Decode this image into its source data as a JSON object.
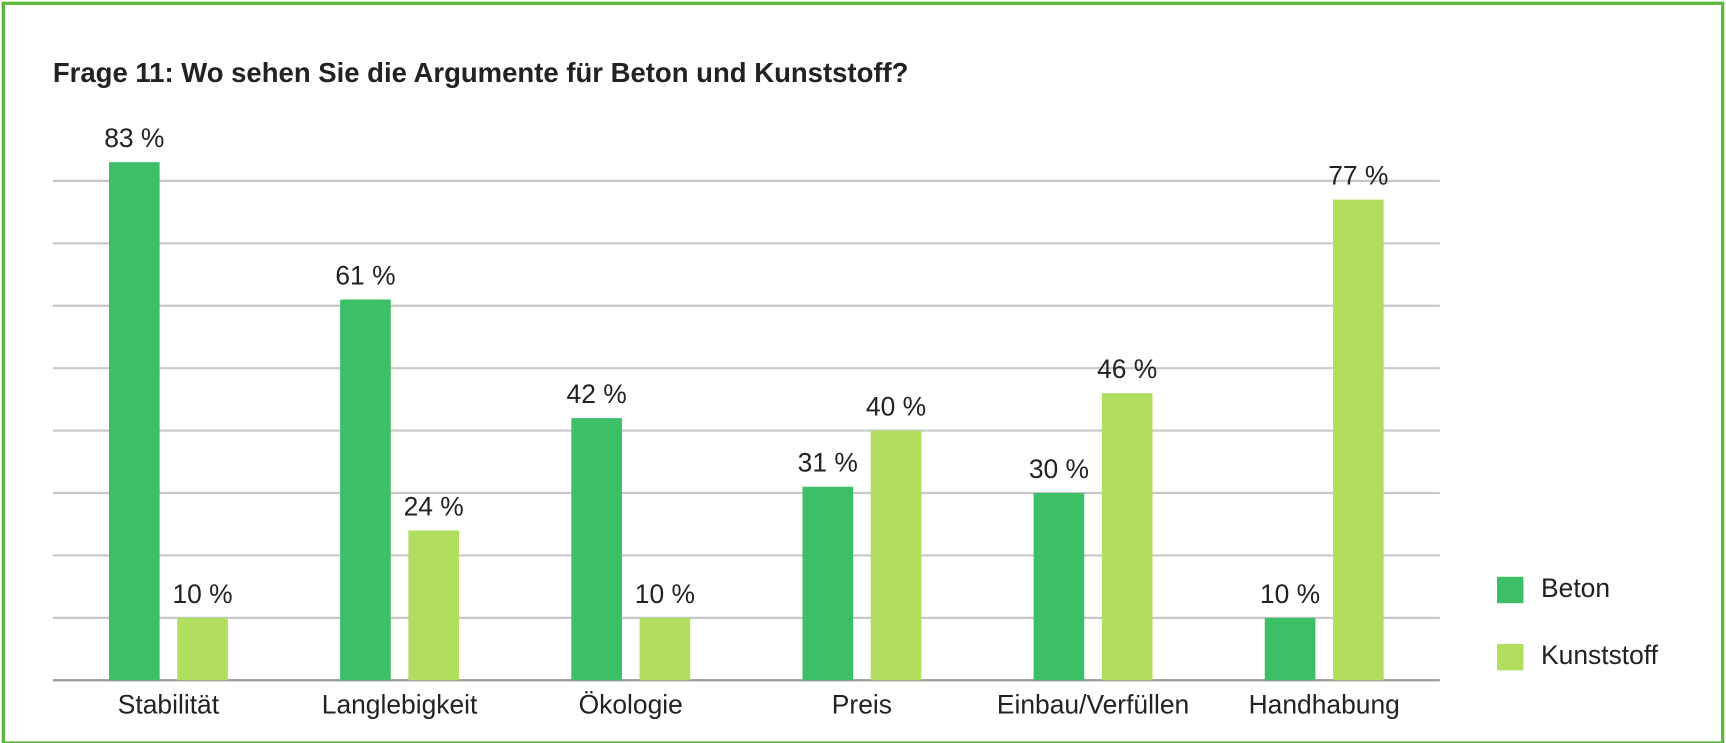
{
  "chart_data": {
    "type": "bar",
    "title": "Frage 11: Wo sehen Sie die Argumente für Beton und Kunststoff?",
    "categories": [
      "Stabilität",
      "Langlebigkeit",
      "Ökologie",
      "Preis",
      "Einbau/Verfüllen",
      "Handhabung"
    ],
    "series": [
      {
        "name": "Beton",
        "color": "#3dbf68",
        "values": [
          83,
          61,
          42,
          31,
          30,
          10
        ],
        "value_labels": [
          "83 %",
          "61 %",
          "42 %",
          "31 %",
          "30 %",
          "10 %"
        ]
      },
      {
        "name": "Kunststoff",
        "color": "#b2de60",
        "values": [
          10,
          24,
          10,
          40,
          46,
          77
        ],
        "value_labels": [
          "10 %",
          "24 %",
          "10 %",
          "40 %",
          "46 %",
          "77 %"
        ]
      }
    ],
    "ylim": [
      0,
      85
    ],
    "yticks": [
      0,
      10,
      20,
      30,
      40,
      50,
      60,
      70,
      80
    ],
    "grid": true,
    "legend": "right"
  }
}
